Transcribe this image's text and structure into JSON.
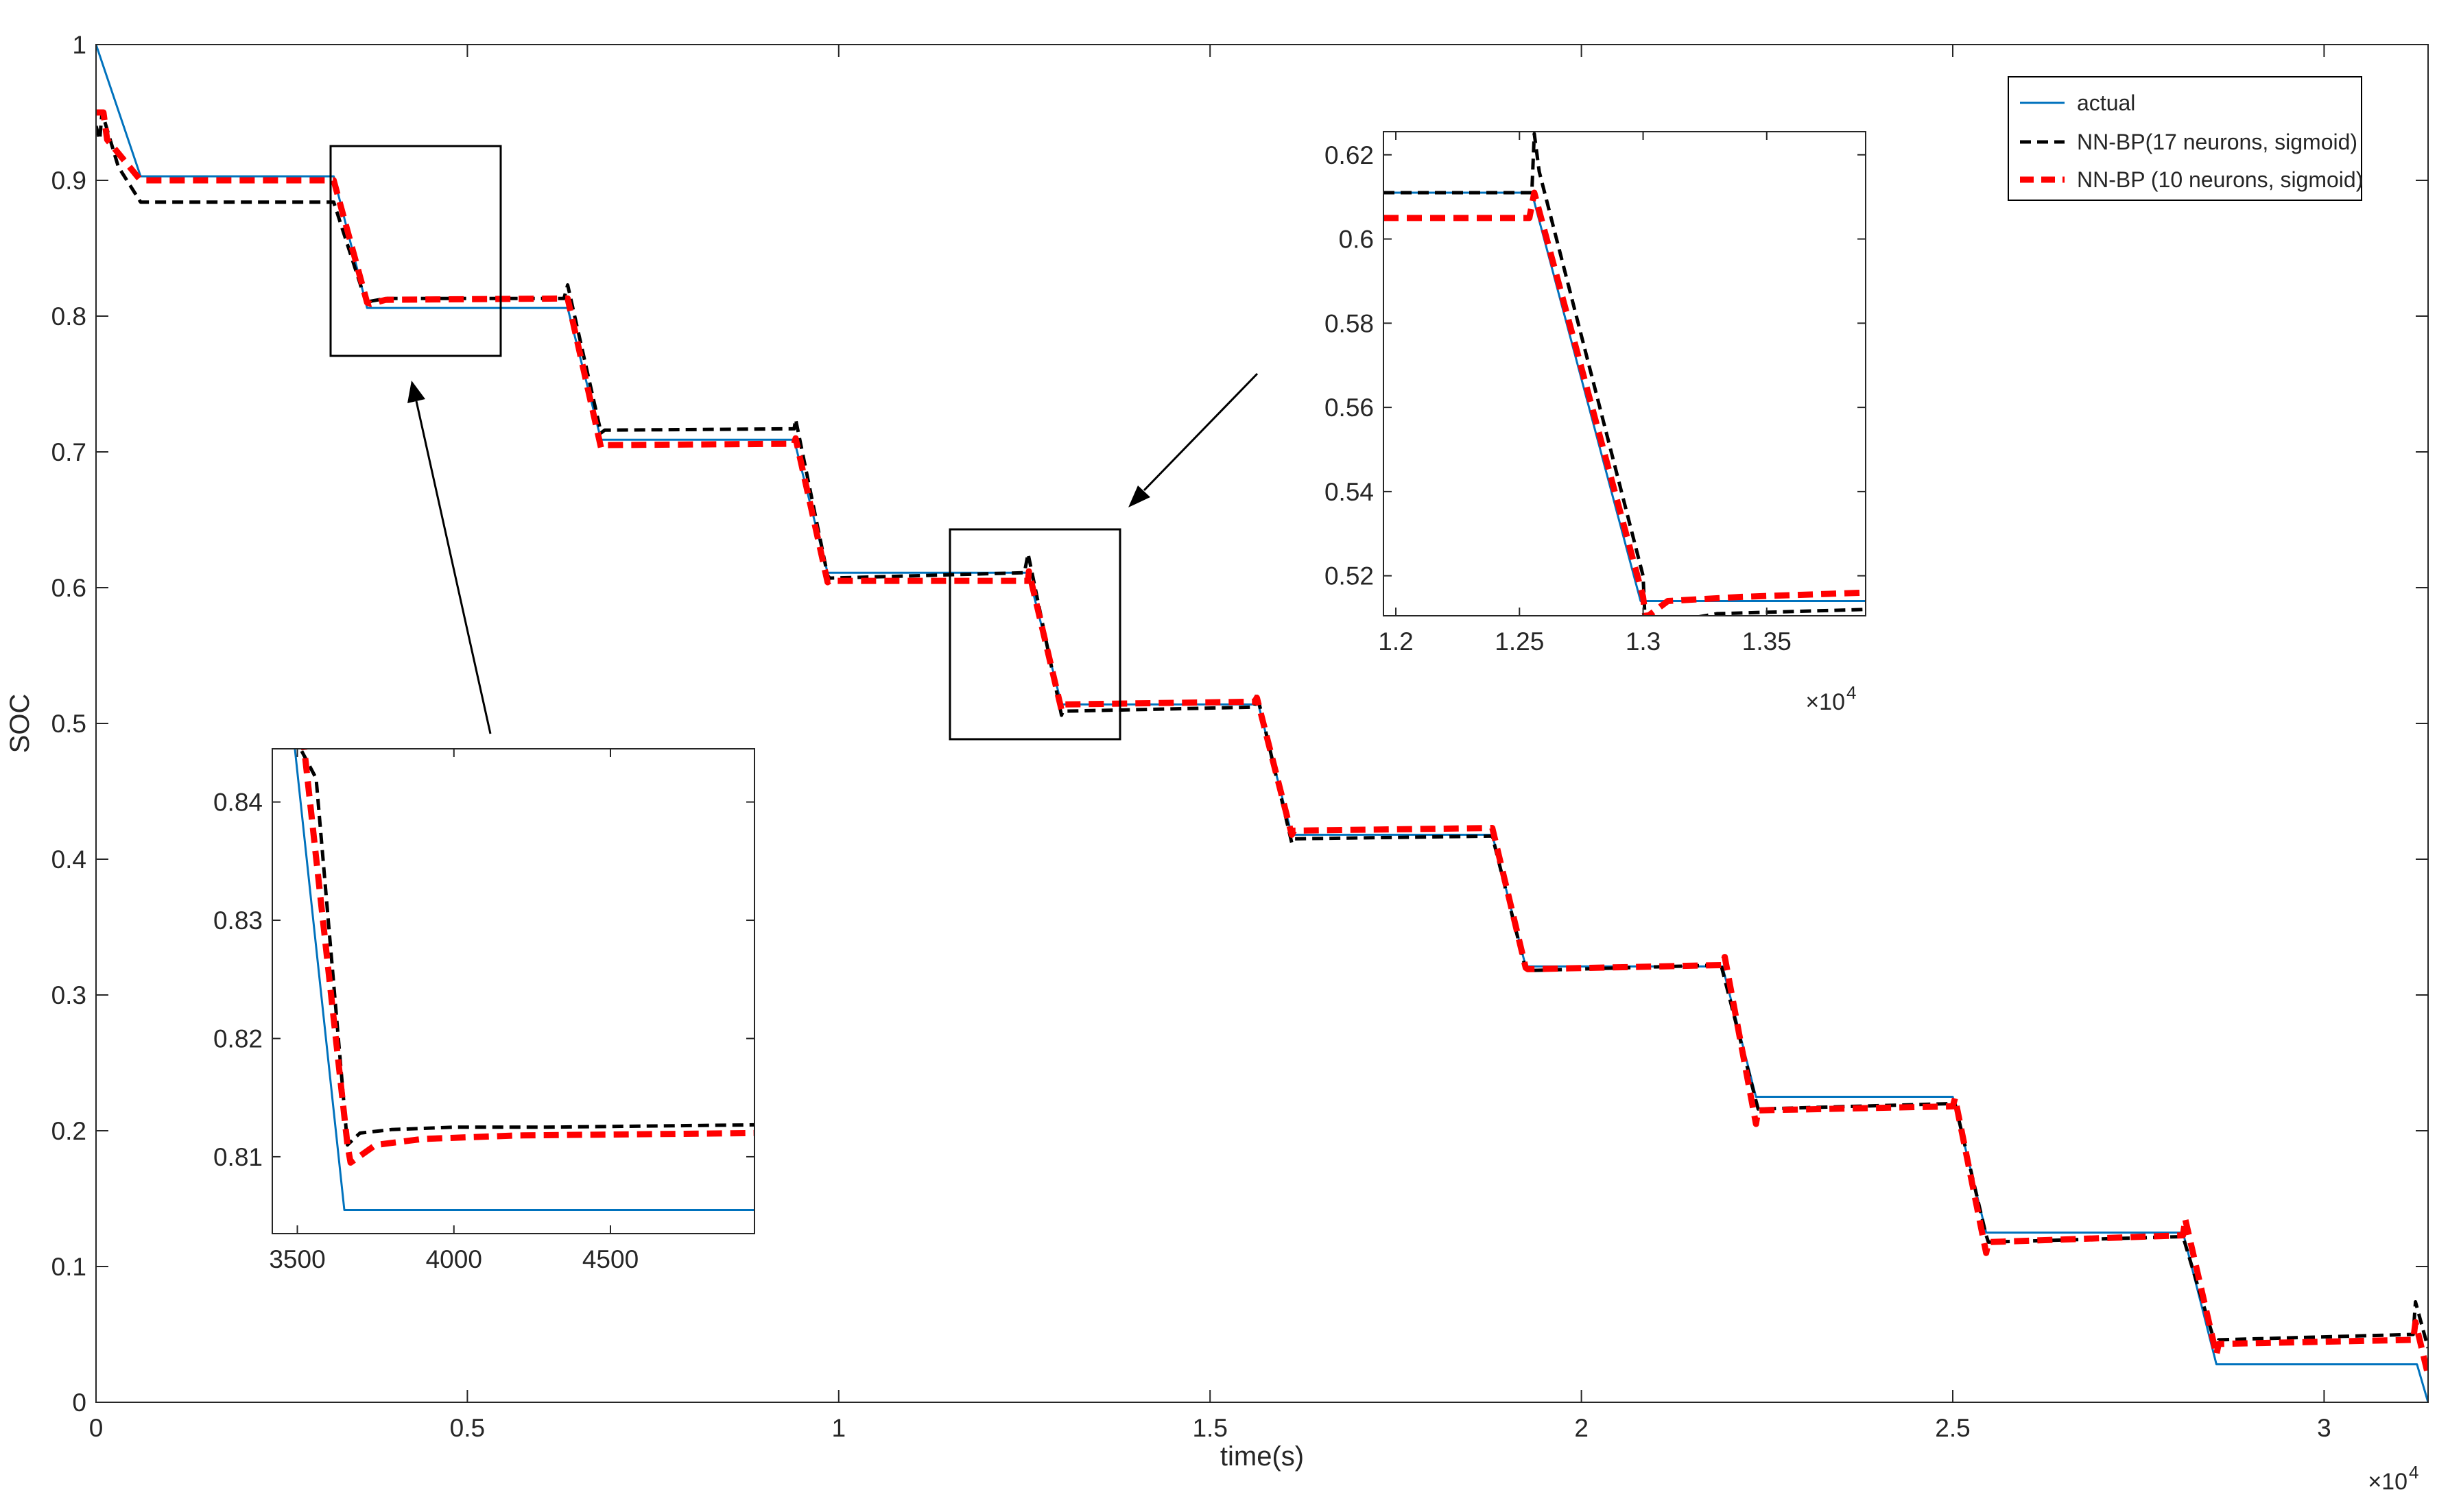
{
  "chart_data": [
    {
      "type": "line",
      "xlabel": "time(s)",
      "ylabel": "SOC",
      "xlim": [
        0,
        31400
      ],
      "ylim": [
        0,
        1
      ],
      "x_ticks": [
        0,
        5000,
        10000,
        15000,
        20000,
        25000,
        30000
      ],
      "x_tick_labels": [
        "0",
        "0.5",
        "1",
        "1.5",
        "2",
        "2.5",
        "3"
      ],
      "x_exponent_label": "×10",
      "x_exponent_power": "4",
      "y_ticks": [
        0,
        0.1,
        0.2,
        0.3,
        0.4,
        0.5,
        0.6,
        0.7,
        0.8,
        0.9,
        1
      ],
      "y_tick_labels": [
        "0",
        "0.1",
        "0.2",
        "0.3",
        "0.4",
        "0.5",
        "0.6",
        "0.7",
        "0.8",
        "0.9",
        "1"
      ],
      "grid": false,
      "legend_position": "top-right",
      "series": [
        {
          "name": "actual",
          "color": "#0072BD",
          "style": "solid",
          "x": [
            0,
            600,
            3200,
            3650,
            6350,
            6800,
            9400,
            9850,
            12550,
            13000,
            15650,
            16100,
            18800,
            19250,
            21900,
            22350,
            25000,
            25450,
            28100,
            28550,
            31250,
            31400
          ],
          "y": [
            1.0,
            0.903,
            0.903,
            0.806,
            0.806,
            0.709,
            0.709,
            0.611,
            0.611,
            0.514,
            0.514,
            0.418,
            0.418,
            0.321,
            0.321,
            0.225,
            0.225,
            0.125,
            0.125,
            0.028,
            0.028,
            0.0
          ]
        },
        {
          "name": "NN-BP(17 neurons, sigmoid)",
          "color": "#000000",
          "style": "dashed",
          "x": [
            0,
            50,
            80,
            300,
            600,
            3200,
            3650,
            3700,
            3900,
            6300,
            6350,
            6800,
            6850,
            9400,
            9420,
            9850,
            9880,
            12500,
            12550,
            13000,
            13020,
            15600,
            15630,
            16100,
            16130,
            18800,
            19250,
            19280,
            21850,
            21880,
            22350,
            22380,
            25000,
            25030,
            25450,
            25480,
            28100,
            28550,
            28580,
            31200,
            31230,
            31400
          ],
          "y": [
            0.94,
            0.93,
            0.95,
            0.91,
            0.884,
            0.884,
            0.808,
            0.811,
            0.813,
            0.813,
            0.823,
            0.714,
            0.716,
            0.717,
            0.724,
            0.609,
            0.607,
            0.611,
            0.625,
            0.506,
            0.509,
            0.512,
            0.522,
            0.412,
            0.415,
            0.417,
            0.319,
            0.318,
            0.322,
            0.322,
            0.222,
            0.216,
            0.22,
            0.22,
            0.123,
            0.118,
            0.122,
            0.04,
            0.046,
            0.05,
            0.074,
            0.04
          ]
        },
        {
          "name": "NN-BP (10 neurons, sigmoid)",
          "color": "#FF0000",
          "style": "dashed",
          "x": [
            0,
            100,
            150,
            600,
            3200,
            3650,
            3700,
            3900,
            6350,
            6800,
            6850,
            9400,
            9420,
            9850,
            9880,
            12550,
            12560,
            13000,
            13030,
            15600,
            15630,
            16100,
            16130,
            18800,
            19250,
            19280,
            21900,
            21930,
            22350,
            22380,
            25000,
            25030,
            25450,
            25480,
            28100,
            28130,
            28550,
            28580,
            31200,
            31230,
            31400
          ],
          "y": [
            0.95,
            0.95,
            0.93,
            0.9,
            0.9,
            0.81,
            0.809,
            0.812,
            0.813,
            0.703,
            0.705,
            0.706,
            0.71,
            0.604,
            0.605,
            0.605,
            0.612,
            0.51,
            0.514,
            0.516,
            0.519,
            0.418,
            0.421,
            0.423,
            0.32,
            0.319,
            0.322,
            0.328,
            0.205,
            0.215,
            0.218,
            0.224,
            0.11,
            0.118,
            0.123,
            0.135,
            0.035,
            0.043,
            0.046,
            0.059,
            0.02
          ]
        }
      ]
    },
    {
      "type": "line",
      "xlim": [
        11950,
        13900
      ],
      "ylim": [
        0.5105,
        0.6255
      ],
      "x_ticks": [
        12000,
        12500,
        13000,
        13500
      ],
      "x_tick_labels": [
        "1.2",
        "1.25",
        "1.3",
        "1.35"
      ],
      "x_exponent_label": "×10",
      "x_exponent_power": "4",
      "y_ticks": [
        0.52,
        0.54,
        0.56,
        0.58,
        0.6,
        0.62
      ],
      "y_tick_labels": [
        "0.52",
        "0.54",
        "0.56",
        "0.58",
        "0.6",
        "0.62"
      ],
      "grid": false,
      "series": [
        {
          "name": "actual",
          "color": "#0072BD",
          "style": "solid",
          "x": [
            11950,
            12550,
            12990,
            13030,
            13900
          ],
          "y": [
            0.611,
            0.611,
            0.514,
            0.514,
            0.514
          ]
        },
        {
          "name": "NN-BP(17 neurons, sigmoid)",
          "color": "#000000",
          "style": "dashed",
          "x": [
            11950,
            12550,
            12560,
            12580,
            13000,
            13010,
            13100,
            13300,
            13900
          ],
          "y": [
            0.611,
            0.611,
            0.625,
            0.616,
            0.52,
            0.507,
            0.509,
            0.511,
            0.512
          ]
        },
        {
          "name": "NN-BP (10 neurons, sigmoid)",
          "color": "#FF0000",
          "style": "dashed",
          "x": [
            11950,
            12540,
            12560,
            13000,
            13010,
            13100,
            13400,
            13900
          ],
          "y": [
            0.605,
            0.605,
            0.611,
            0.515,
            0.51,
            0.514,
            0.515,
            0.516
          ]
        }
      ]
    },
    {
      "type": "line",
      "xlim": [
        3420,
        4960
      ],
      "ylim": [
        0.8035,
        0.8445
      ],
      "x_ticks": [
        3500,
        4000,
        4500
      ],
      "x_tick_labels": [
        "3500",
        "4000",
        "4500"
      ],
      "y_ticks": [
        0.81,
        0.82,
        0.83,
        0.84
      ],
      "y_tick_labels": [
        "0.81",
        "0.82",
        "0.83",
        "0.84"
      ],
      "grid": false,
      "series": [
        {
          "name": "actual",
          "color": "#0072BD",
          "style": "solid",
          "x": [
            3420,
            3490,
            3650,
            4960
          ],
          "y": [
            0.845,
            0.845,
            0.8055,
            0.8055
          ]
        },
        {
          "name": "NN-BP(17 neurons, sigmoid)",
          "color": "#000000",
          "style": "dashed",
          "x": [
            3420,
            3500,
            3560,
            3660,
            3700,
            3800,
            4000,
            4300,
            4960
          ],
          "y": [
            0.845,
            0.845,
            0.842,
            0.811,
            0.812,
            0.8123,
            0.8125,
            0.8125,
            0.8127
          ]
        },
        {
          "name": "NN-BP (10 neurons, sigmoid)",
          "color": "#FF0000",
          "style": "dashed",
          "x": [
            3420,
            3520,
            3660,
            3670,
            3750,
            3900,
            4200,
            4960
          ],
          "y": [
            0.845,
            0.845,
            0.811,
            0.8095,
            0.811,
            0.8115,
            0.8118,
            0.812
          ]
        }
      ]
    }
  ]
}
